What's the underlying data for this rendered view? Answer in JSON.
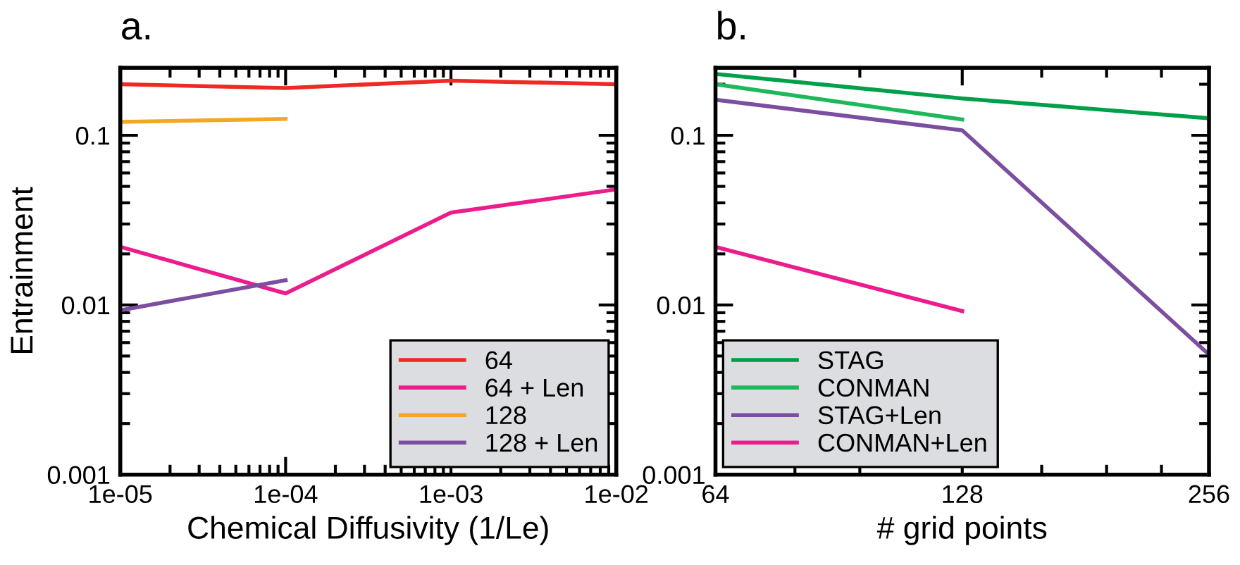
{
  "chart_data": [
    {
      "type": "line",
      "title": "a.",
      "xlabel": "Chemical Diffusivity (1/Le)",
      "ylabel": "Entrainment",
      "log": "xy",
      "xlim": [
        1e-05,
        0.01
      ],
      "xticks": [
        {
          "value": 1e-05,
          "label": "1e-05"
        },
        {
          "value": 0.0001,
          "label": "1e-04"
        },
        {
          "value": 0.001,
          "label": "1e-03"
        },
        {
          "value": 0.01,
          "label": "1e-02"
        }
      ],
      "ylim": [
        0.001,
        0.25
      ],
      "yticks": [
        0.001,
        0.01,
        0.1
      ],
      "legend": "bottom right",
      "grid": false,
      "series": [
        {
          "name": "64",
          "color": "#ee2a24",
          "x": [
            1e-05,
            0.0001,
            0.001,
            0.01
          ],
          "values": [
            0.2,
            0.19,
            0.21,
            0.2
          ]
        },
        {
          "name": "64 + Len",
          "color": "#ec1c8c",
          "x": [
            1e-05,
            0.0001,
            0.001,
            0.01
          ],
          "values": [
            0.022,
            0.0117,
            0.035,
            0.048
          ]
        },
        {
          "name": "128",
          "color": "#f5a623",
          "x": [
            1e-05,
            0.0001
          ],
          "values": [
            0.12,
            0.125
          ]
        },
        {
          "name": "128 + Len",
          "color": "#7b4ea0",
          "x": [
            1e-05,
            0.0001
          ],
          "values": [
            0.0093,
            0.014
          ]
        }
      ]
    },
    {
      "type": "line",
      "title": "b.",
      "xlabel": "# grid points",
      "log": "xy",
      "xlim": [
        64,
        256
      ],
      "xticks": [
        64,
        {
          "value": 80,
          "label": null
        },
        {
          "value": 96,
          "label": null
        },
        128,
        {
          "value": 160,
          "label": null
        },
        {
          "value": 192,
          "label": null
        },
        {
          "value": 224,
          "label": null
        },
        256
      ],
      "ylim": [
        0.001,
        0.25
      ],
      "yticks": [
        0.001,
        0.01,
        0.1
      ],
      "legend": "bottom left",
      "grid": false,
      "series": [
        {
          "name": "STAG",
          "color": "#00a04a",
          "x": [
            64,
            128,
            256
          ],
          "values": [
            0.23,
            0.165,
            0.126
          ]
        },
        {
          "name": "CONMAN",
          "color": "#1db85a",
          "x": [
            64,
            128
          ],
          "values": [
            0.2,
            0.124
          ]
        },
        {
          "name": "STAG+Len",
          "color": "#7b4ea0",
          "x": [
            64,
            128,
            256
          ],
          "values": [
            0.162,
            0.107,
            0.0051
          ]
        },
        {
          "name": "CONMAN+Len",
          "color": "#ec1c8c",
          "x": [
            64,
            128
          ],
          "values": [
            0.022,
            0.0092
          ]
        }
      ]
    }
  ]
}
